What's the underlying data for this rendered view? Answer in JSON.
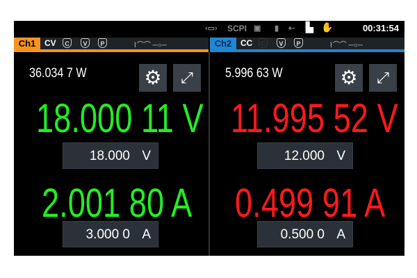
{
  "status_bar": {
    "scpi": "SCPI",
    "time": "00:31:54",
    "icons": [
      "interface-icon",
      "scpi",
      "screenshot-icon",
      "usb-stick-icon",
      "usb-icon",
      "lan-icon",
      "remote-icon"
    ]
  },
  "colors": {
    "ch1": "#f7931e",
    "ch2": "#1e88d4",
    "cv": "#22ee22",
    "cc": "#ff1a1a"
  },
  "channels": [
    {
      "label": "Ch1",
      "mode": "CV",
      "protections": [
        "C",
        "V",
        "P"
      ],
      "power": "36.034 7 W",
      "voltage": "18.000 11 V",
      "current": "2.001 80 A",
      "voltage_set": "18.000",
      "voltage_unit": "V",
      "current_set": "3.000 0",
      "current_unit": "A"
    },
    {
      "label": "Ch2",
      "mode": "CC",
      "protections": [
        "C",
        "V",
        "P"
      ],
      "power": "5.996 63 W",
      "voltage": "11.995 52 V",
      "current": "0.499 91 A",
      "voltage_set": "12.000",
      "voltage_unit": "V",
      "current_set": "0.500 0",
      "current_unit": "A"
    }
  ]
}
